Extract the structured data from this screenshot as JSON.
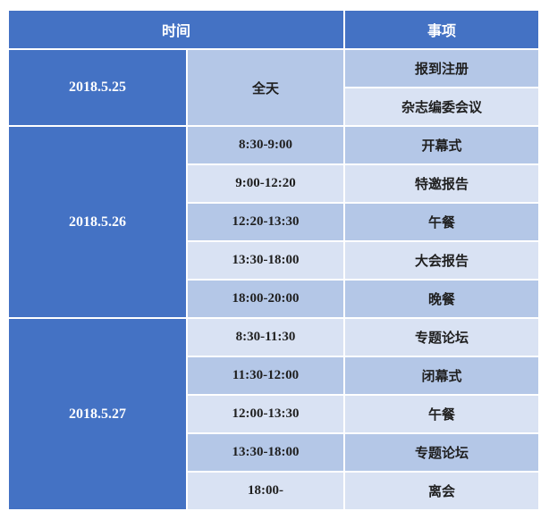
{
  "header": {
    "time_label": "时间",
    "item_label": "事项"
  },
  "schedule": {
    "days": [
      {
        "date": "2018.5.25",
        "sessions": [
          {
            "time": "全天",
            "item": "报到注册"
          },
          {
            "time": "",
            "item": "杂志编委会议"
          }
        ]
      },
      {
        "date": "2018.5.26",
        "sessions": [
          {
            "time": "8:30-9:00",
            "item": "开幕式"
          },
          {
            "time": "9:00-12:20",
            "item": "特邀报告"
          },
          {
            "time": "12:20-13:30",
            "item": "午餐"
          },
          {
            "time": "13:30-18:00",
            "item": "大会报告"
          },
          {
            "time": "18:00-20:00",
            "item": "晚餐"
          }
        ]
      },
      {
        "date": "2018.5.27",
        "sessions": [
          {
            "time": "8:30-11:30",
            "item": "专题论坛"
          },
          {
            "time": "11:30-12:00",
            "item": "闭幕式"
          },
          {
            "time": "12:00-13:30",
            "item": "午餐"
          },
          {
            "time": "13:30-18:00",
            "item": "专题论坛"
          },
          {
            "time": "18:00-",
            "item": "离会"
          }
        ]
      }
    ]
  },
  "colors": {
    "header_bg": "#4472C4",
    "date_bg": "#4472C4",
    "band_medium": "#B4C7E7",
    "band_light": "#D9E2F3",
    "header_text": "#FFFFFF",
    "body_text": "#1F1F1F",
    "grid": "#FFFFFF"
  }
}
